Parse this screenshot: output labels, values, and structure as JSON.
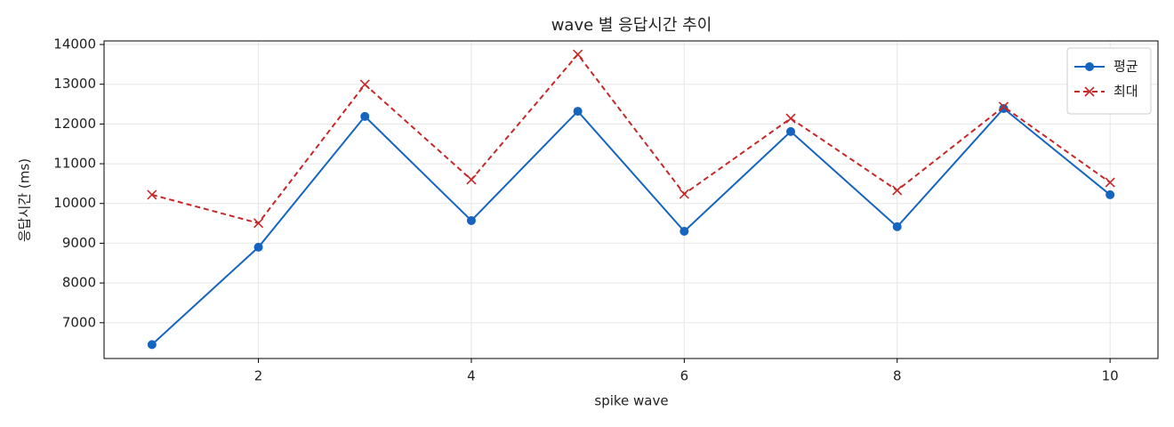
{
  "chart_data": {
    "type": "line",
    "title": "wave 별 응답시간 추이",
    "xlabel": "spike wave",
    "ylabel": "응답시간 (ms)",
    "x": [
      1,
      2,
      3,
      4,
      5,
      6,
      7,
      8,
      9,
      10
    ],
    "series": [
      {
        "name": "평균",
        "color": "#1565c0",
        "marker": "circle",
        "dash": false,
        "values": [
          6450,
          8900,
          12190,
          9570,
          12320,
          9300,
          11810,
          9415,
          12390,
          10220
        ]
      },
      {
        "name": "최대",
        "color": "#c62828",
        "marker": "x",
        "dash": true,
        "values": [
          10220,
          9505,
          12995,
          10600,
          13750,
          10240,
          12140,
          10330,
          12435,
          10530
        ]
      }
    ],
    "xlim": [
      0.55,
      10.45
    ],
    "xticks": [
      2,
      4,
      6,
      8,
      10
    ],
    "ylim": [
      6100,
      14090
    ],
    "yticks": [
      7000,
      8000,
      9000,
      10000,
      11000,
      12000,
      13000,
      14000
    ],
    "grid": true,
    "legend": "upper right"
  }
}
